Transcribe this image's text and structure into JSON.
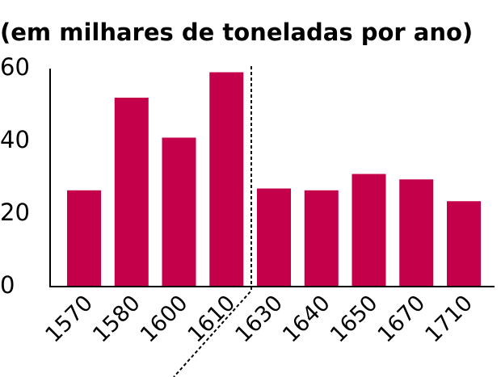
{
  "chart_data": {
    "type": "bar",
    "title": "(em milhares de toneladas por ano)",
    "categories": [
      "1570",
      "1580",
      "1600",
      "1610",
      "1630",
      "1640",
      "1650",
      "1670",
      "1710"
    ],
    "values": [
      26.5,
      52,
      41,
      59,
      27,
      26.5,
      31,
      29.5,
      23.5
    ],
    "color": "#c4004a",
    "ylim": [
      0,
      60
    ],
    "yticks": [
      0,
      20,
      40,
      60
    ],
    "grid": false
  }
}
